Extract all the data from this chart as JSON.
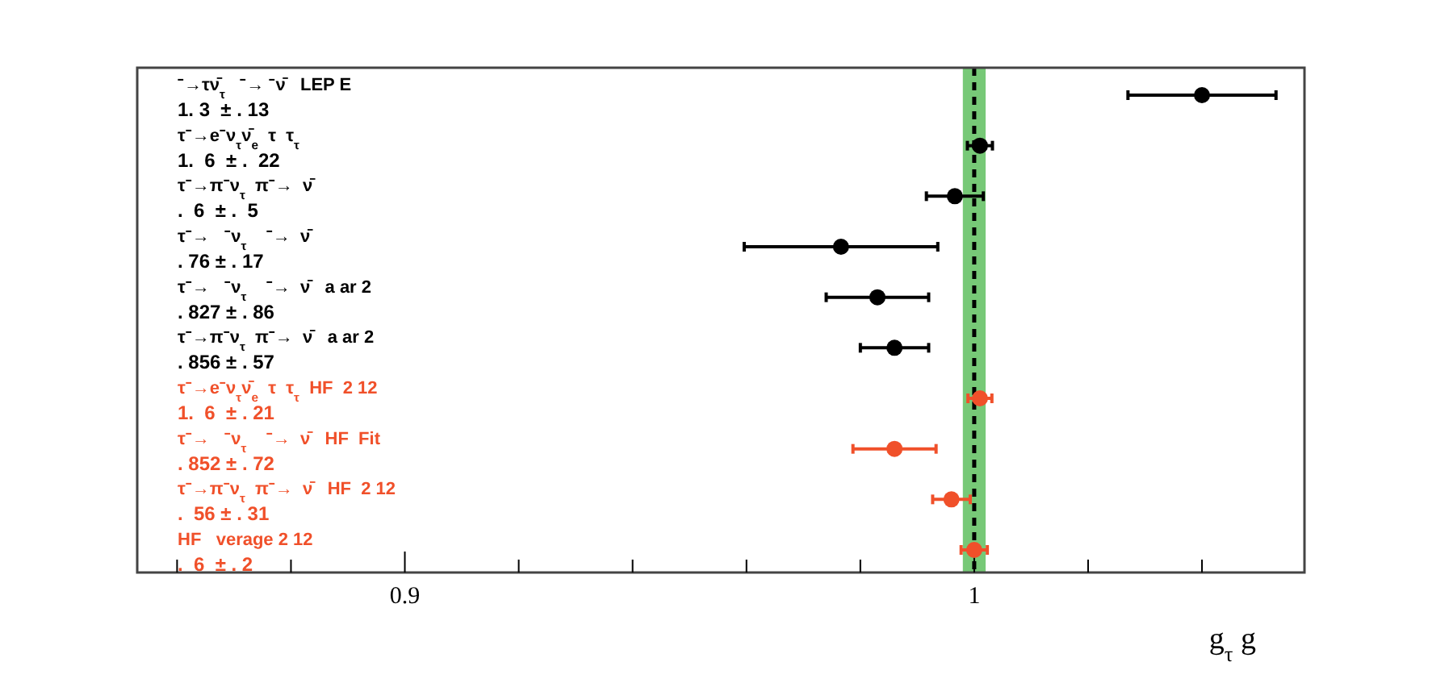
{
  "chart_data": {
    "type": "scatter",
    "orientation": "horizontal",
    "xlabel": "g$_{τ}$ g",
    "categories": [
      "⁻→τν̄$_{τ}$   ⁻→ ⁻ν̄   LEP E\n1. 3  ± . 13",
      "τ⁻→e⁻ν$_{τ}$ν̄$_{e}$  τ  τ$_{τ}$\n1.  6  ± .  22",
      "τ⁻→π⁻ν$_{τ}$  π⁻→  ν̄\n.  6  ± .  5",
      "τ⁻→   ⁻ν$_{τ}$    ⁻→  ν̄\n. 76 ± . 17",
      "τ⁻→   ⁻ν$_{τ}$    ⁻→  ν̄   a ar 2\n. 827 ± . 86",
      "τ⁻→π⁻ν$_{τ}$  π⁻→  ν̄   a ar 2\n. 856 ± . 57",
      "τ⁻→e⁻ν$_{τ}$ν̄$_{e}$  τ  τ$_{τ}$  HF  2 12\n1.  6  ± . 21",
      "τ⁻→   ⁻ν$_{τ}$    ⁻→  ν̄   HF  Fit\n. 852 ± . 72",
      "τ⁻→π⁻ν$_{τ}$  π⁻→  ν̄   HF  2 12\n.  56 ± . 31",
      "HF   verage 2 12\n.  6  ± . 2"
    ],
    "series": [
      {
        "values": [
          1.04,
          1.001,
          0.9966,
          0.9766,
          0.983,
          0.986,
          1.001,
          0.986,
          0.996,
          1.0
        ],
        "errors": [
          0.013,
          0.0022,
          0.005,
          0.017,
          0.009,
          0.006,
          0.0021,
          0.0073,
          0.0033,
          0.0023
        ],
        "colors": [
          "#000000",
          "#000000",
          "#000000",
          "#000000",
          "#000000",
          "#000000",
          "#f0502a",
          "#f0502a",
          "#f0502a",
          "#f0502a"
        ]
      }
    ],
    "xlim": [
      0.853,
      1.058
    ],
    "xticks": [
      {
        "value": 0.86,
        "label": null
      },
      {
        "value": 0.88,
        "label": null
      },
      0.9,
      {
        "value": 0.92,
        "label": null
      },
      {
        "value": 0.94,
        "label": null
      },
      {
        "value": 0.96,
        "label": null
      },
      {
        "value": 0.98,
        "label": null
      },
      1,
      {
        "value": 1.02,
        "label": null
      },
      {
        "value": 1.04,
        "label": null
      }
    ],
    "marker": "circle",
    "grid": false,
    "ref_lines": [
      {
        "axis": "x",
        "value": 1.0,
        "line_style": "dashed",
        "color": "#000000"
      }
    ],
    "bands": [
      {
        "axis": "x",
        "from": 0.998,
        "to": 1.002,
        "color": "#77c977"
      }
    ]
  }
}
